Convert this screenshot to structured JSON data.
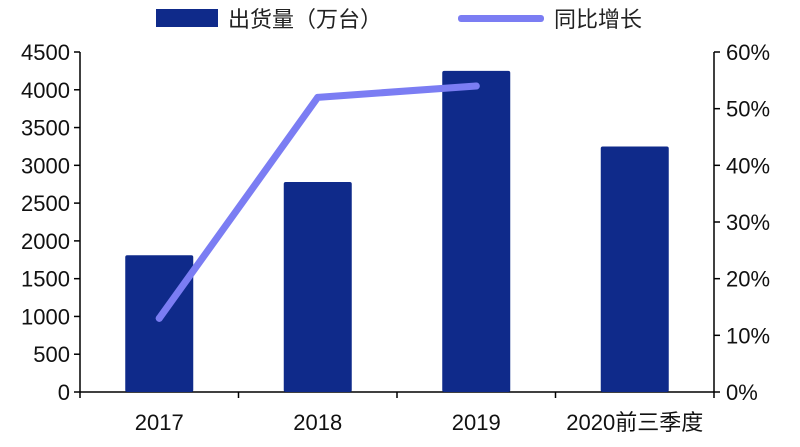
{
  "chart_data": {
    "type": "bar",
    "categories": [
      "2017",
      "2018",
      "2019",
      "2020前三季度"
    ],
    "series": [
      {
        "name": "出货量（万台）",
        "type": "bar",
        "axis": "left",
        "values": [
          1810,
          2780,
          4250,
          3250
        ],
        "color": "#0f2a8a"
      },
      {
        "name": "同比增长",
        "type": "line",
        "axis": "right",
        "values": [
          0.13,
          0.52,
          0.54,
          null
        ],
        "color": "#7b7df3"
      }
    ],
    "y_left": {
      "min": 0,
      "max": 4500,
      "ticks": [
        "0",
        "500",
        "1000",
        "1500",
        "2000",
        "2500",
        "3000",
        "3500",
        "4000",
        "4500"
      ]
    },
    "y_right": {
      "min": 0,
      "max": 0.6,
      "ticks": [
        "0%",
        "10%",
        "20%",
        "30%",
        "40%",
        "50%",
        "60%"
      ]
    },
    "legend_position": "top",
    "grid": false
  }
}
